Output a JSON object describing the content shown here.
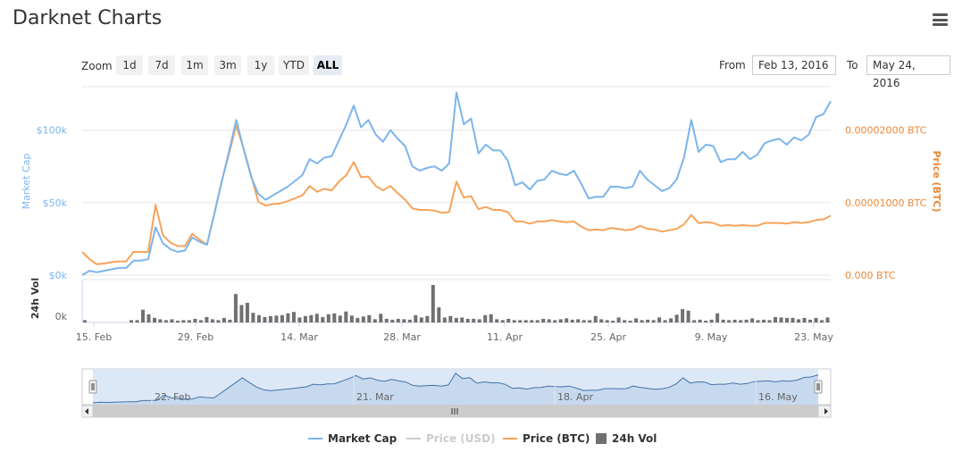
{
  "title": "Darknet Charts",
  "menu_icon": "hamburger-menu-icon",
  "zoom": {
    "label": "Zoom",
    "buttons": [
      "1d",
      "7d",
      "1m",
      "3m",
      "1y",
      "YTD",
      "ALL"
    ],
    "active": "ALL"
  },
  "range": {
    "from_label": "From",
    "from_value": "Feb 13, 2016",
    "to_label": "To",
    "to_value": "May 24, 2016"
  },
  "colors": {
    "market_cap": "#7cb5ec",
    "price_btc": "#f7a35c",
    "price_usd": "#cccccc",
    "volume": "#707070",
    "axis_price": "#e8893a",
    "navigator_fill": "#d9e6f6",
    "navigator_line": "#4572a7"
  },
  "chart_data": {
    "type": "line",
    "x_ticks": [
      "15. Feb",
      "29. Feb",
      "14. Mar",
      "28. Mar",
      "11. Apr",
      "25. Apr",
      "9. May",
      "23. May"
    ],
    "x_range": [
      "2016-02-13",
      "2016-05-24"
    ],
    "navigator_ticks": [
      "22. Feb",
      "21. Mar",
      "18. Apr",
      "16. May"
    ],
    "left_axis": {
      "title": "Market Cap",
      "ticks": [
        "$0k",
        "$50k",
        "$100k"
      ],
      "range": [
        0,
        130000
      ]
    },
    "right_axis": {
      "title": "Price (BTC)",
      "ticks": [
        "0.000 BTC",
        "0.00001000 BTC",
        "0.00002000 BTC"
      ],
      "range": [
        0,
        2.6e-05
      ]
    },
    "volume_axis": {
      "title": "24h Vol",
      "ticks": [
        "0k"
      ]
    },
    "series": [
      {
        "name": "Market Cap",
        "axis": "left",
        "values": [
          0,
          3000,
          2000,
          3000,
          4000,
          5000,
          5000,
          10000,
          10000,
          11000,
          33000,
          22000,
          18000,
          16000,
          17000,
          26000,
          23000,
          21000,
          42000,
          64000,
          85000,
          107000,
          87000,
          68000,
          56000,
          52000,
          55000,
          58000,
          61000,
          65000,
          69000,
          80000,
          77000,
          81000,
          82000,
          93000,
          104000,
          117000,
          102000,
          107000,
          97000,
          92000,
          100000,
          94000,
          89000,
          75000,
          72000,
          74000,
          75000,
          72000,
          77000,
          126000,
          104000,
          108000,
          84000,
          90000,
          86000,
          86000,
          79000,
          62000,
          64000,
          59000,
          65000,
          66000,
          72000,
          70000,
          69000,
          72000,
          63000,
          53000,
          54000,
          54000,
          61000,
          61000,
          60000,
          61000,
          72000,
          66000,
          62000,
          58000,
          60000,
          66000,
          81000,
          107000,
          85000,
          90000,
          89000,
          78000,
          80000,
          80000,
          85000,
          80000,
          83000,
          91000,
          93000,
          94000,
          90000,
          95000,
          93000,
          97000,
          109000,
          111000,
          120000
        ]
      },
      {
        "name": "Price (USD)",
        "axis": "none",
        "hidden": true,
        "values": []
      },
      {
        "name": "Price (BTC)",
        "axis": "right",
        "values": [
          3.2e-06,
          2.2e-06,
          1.5e-06,
          1.6e-06,
          1.8e-06,
          1.9e-06,
          1.9e-06,
          3.2e-06,
          3.2e-06,
          3.2e-06,
          9.7e-06,
          5.5e-06,
          4.5e-06,
          4e-06,
          4e-06,
          5.7e-06,
          4.9e-06,
          4.2e-06,
          8.5e-06,
          1.29e-05,
          1.67e-05,
          2.06e-05,
          1.75e-05,
          1.38e-05,
          1.01e-05,
          9.6e-06,
          9.8e-06,
          9.9e-06,
          1.02e-05,
          1.06e-05,
          1.1e-05,
          1.23e-05,
          1.15e-05,
          1.19e-05,
          1.17e-05,
          1.29e-05,
          1.38e-05,
          1.56e-05,
          1.35e-05,
          1.36e-05,
          1.23e-05,
          1.17e-05,
          1.23e-05,
          1.13e-05,
          1.04e-05,
          9.2e-06,
          9e-06,
          9e-06,
          8.9e-06,
          8.6e-06,
          8.7e-06,
          1.29e-05,
          1.07e-05,
          1.09e-05,
          9.1e-06,
          9.4e-06,
          9e-06,
          9e-06,
          8.7e-06,
          7.4e-06,
          7.4e-06,
          7.1e-06,
          7.4e-06,
          7.4e-06,
          7.6e-06,
          7.4e-06,
          7.3e-06,
          7.4e-06,
          6.7e-06,
          6.2e-06,
          6.3e-06,
          6.2e-06,
          6.5e-06,
          6.4e-06,
          6.2e-06,
          6.3e-06,
          6.8e-06,
          6.4e-06,
          6.3e-06,
          6e-06,
          6.2e-06,
          6.4e-06,
          7e-06,
          8.3e-06,
          7.2e-06,
          7.3e-06,
          7.2e-06,
          6.8e-06,
          6.9e-06,
          6.8e-06,
          6.9e-06,
          6.8e-06,
          6.8e-06,
          7.2e-06,
          7.2e-06,
          7.2e-06,
          7.1e-06,
          7.3e-06,
          7.2e-06,
          7.3e-06,
          7.6e-06,
          7.7e-06,
          8.2e-06
        ]
      },
      {
        "name": "24h Vol",
        "axis": "volume",
        "values": [
          0.5,
          0,
          0,
          0,
          0,
          0,
          0,
          0,
          0.5,
          0.5,
          2.8,
          1.8,
          1,
          0.7,
          0.5,
          0.7,
          0.4,
          0.5,
          0.5,
          0.8,
          0.5,
          1.2,
          0.7,
          0.5,
          1,
          0.6,
          6.2,
          3.8,
          4.3,
          2.1,
          1.6,
          1.2,
          1.4,
          1.5,
          1.6,
          2,
          2.3,
          1.1,
          1.4,
          1.6,
          1.9,
          1.2,
          1.8,
          2,
          1.5,
          2.4,
          1.5,
          1,
          1.3,
          1.6,
          0.7,
          1.9,
          0.8,
          0.6,
          0.8,
          0.7,
          0.6,
          1.6,
          1.1,
          1.4,
          8.2,
          3.3,
          1.1,
          1.4,
          1,
          1.1,
          0.8,
          0.8,
          0.7,
          1.6,
          1.8,
          0.7,
          0.5,
          0.8,
          0.5,
          0.5,
          0.5,
          0.5,
          0.5,
          0.8,
          0.7,
          0.5,
          0.7,
          0.9,
          0.6,
          0.7,
          0.5,
          0.5,
          1.4,
          0.7,
          0.5,
          0.4,
          1.1,
          0.5,
          0.4,
          0.9,
          0.5,
          0.6,
          0.5,
          1.1,
          0.5,
          0.9,
          1.7,
          2.9,
          2.6,
          0.5,
          0.6,
          0.4,
          0.6,
          2,
          0.6,
          0.5,
          0.6,
          0.5,
          0.6,
          0.9,
          0.5,
          0.6,
          0.5,
          1.2,
          1.1,
          1,
          1,
          0.7,
          1,
          0.6,
          1,
          0.5,
          1.1
        ]
      }
    ],
    "grid": true,
    "legend_placement": "bottom-center"
  },
  "legend": [
    {
      "label": "Market Cap",
      "color": "#7cb5ec",
      "hidden": false,
      "kind": "line"
    },
    {
      "label": "Price (USD)",
      "color": "#cccccc",
      "hidden": true,
      "kind": "line"
    },
    {
      "label": "Price (BTC)",
      "color": "#f7a35c",
      "hidden": false,
      "kind": "line"
    },
    {
      "label": "24h Vol",
      "color": "#707070",
      "hidden": false,
      "kind": "square"
    }
  ]
}
